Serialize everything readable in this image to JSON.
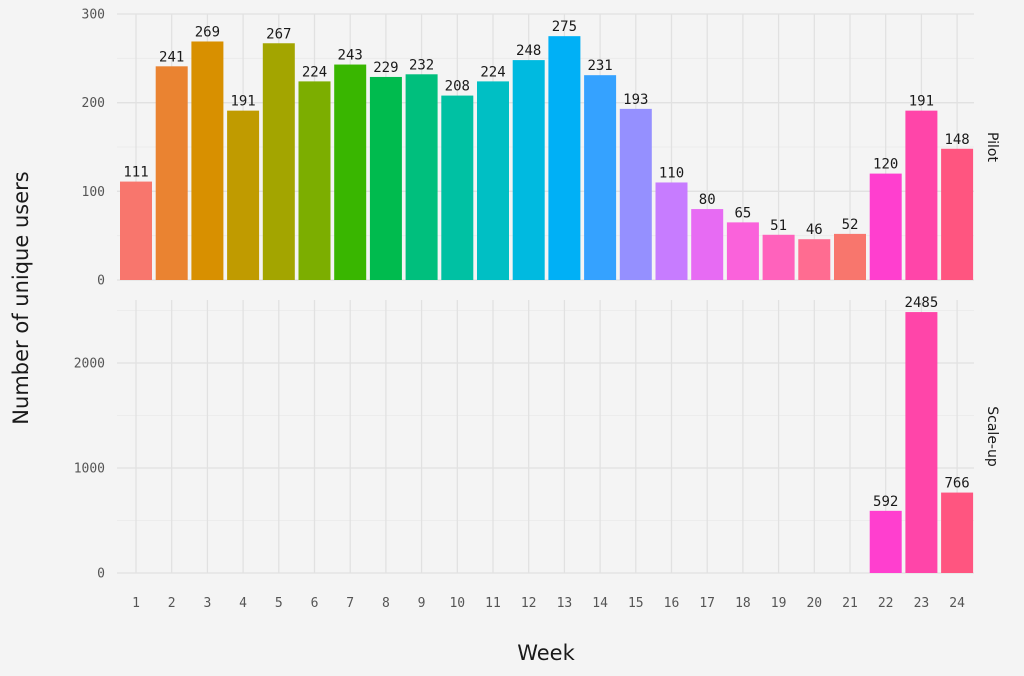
{
  "chart_data": {
    "type": "bar",
    "xlabel": "Week",
    "ylabel": "Number of unique users",
    "categories": [
      "1",
      "2",
      "3",
      "4",
      "5",
      "6",
      "7",
      "8",
      "9",
      "10",
      "11",
      "12",
      "13",
      "14",
      "15",
      "16",
      "17",
      "18",
      "19",
      "20",
      "21",
      "22",
      "23",
      "24"
    ],
    "grid": true,
    "legend": "none",
    "facets": [
      {
        "label": "Pilot",
        "ylim": [
          0,
          300
        ],
        "yticks": [
          0,
          100,
          200,
          300
        ],
        "values": [
          111,
          241,
          269,
          191,
          267,
          224,
          243,
          229,
          232,
          208,
          224,
          248,
          275,
          231,
          193,
          110,
          80,
          65,
          51,
          46,
          52,
          120,
          191,
          148
        ]
      },
      {
        "label": "Scale-up",
        "ylim": [
          0,
          2600
        ],
        "yticks": [
          0,
          1000,
          2000
        ],
        "values": [
          null,
          null,
          null,
          null,
          null,
          null,
          null,
          null,
          null,
          null,
          null,
          null,
          null,
          null,
          null,
          null,
          null,
          null,
          null,
          null,
          null,
          592,
          2485,
          766
        ]
      }
    ],
    "colors": [
      "#f8766d",
      "#ea8331",
      "#d89000",
      "#c09b00",
      "#a3a500",
      "#7cae00",
      "#39b600",
      "#00bb4e",
      "#00bf7d",
      "#00c1a3",
      "#00bfc4",
      "#00bae0",
      "#00b0f6",
      "#35a2ff",
      "#9590ff",
      "#c77cff",
      "#e76bf3",
      "#fa62db",
      "#ff62bc",
      "#ff6c91",
      "#f8766d",
      "#ff3fcf",
      "#ff45a9",
      "#ff5580"
    ]
  }
}
